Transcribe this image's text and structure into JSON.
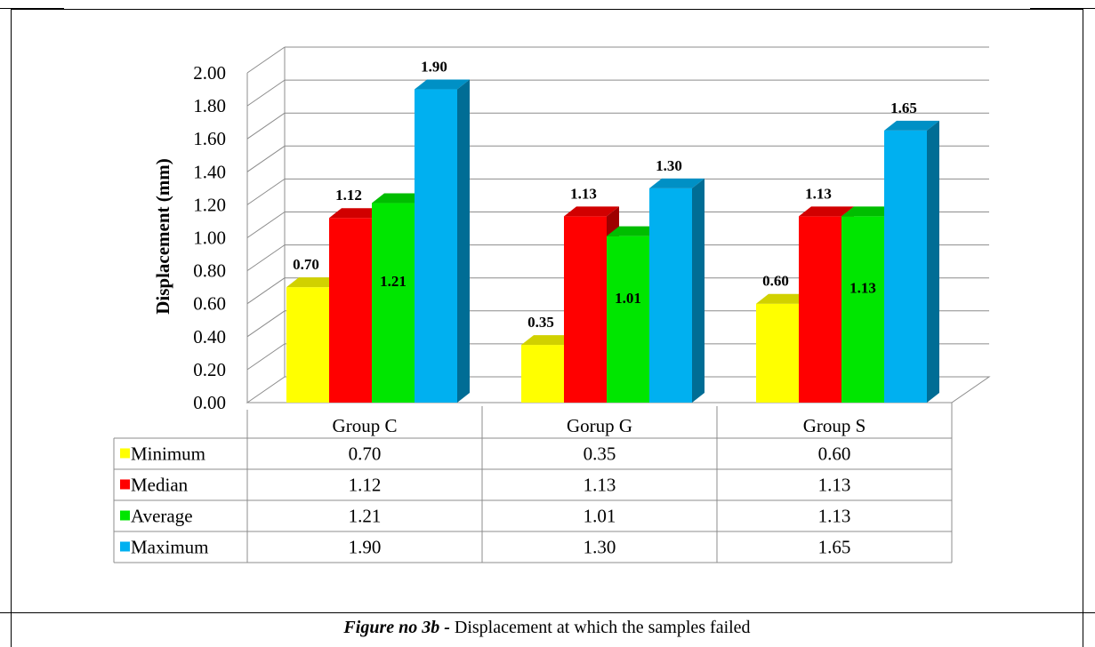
{
  "caption": {
    "label": "Figure no 3b -",
    "text": " Displacement at which the samples failed"
  },
  "chart_data": {
    "type": "bar",
    "style": "3d-clustered-column with data table",
    "ylabel": "Displacement (mm)",
    "xlabel": "",
    "ylim": [
      0,
      2.0
    ],
    "ytick_step": 0.2,
    "ytick_labels": [
      "0.00",
      "0.20",
      "0.40",
      "0.60",
      "0.80",
      "1.00",
      "1.20",
      "1.40",
      "1.60",
      "1.80",
      "2.00"
    ],
    "grid": true,
    "legend": "data-table-left",
    "categories": [
      "Group C",
      "Gorup G",
      "Group S"
    ],
    "series": [
      {
        "name": "Minimum",
        "color": "#FFFF00",
        "values": [
          0.7,
          0.35,
          0.6
        ],
        "labels": [
          "0.70",
          "0.35",
          "0.60"
        ]
      },
      {
        "name": "Median",
        "color": "#FF0000",
        "values": [
          1.12,
          1.13,
          1.13
        ],
        "labels": [
          "1.12",
          "1.13",
          "1.13"
        ]
      },
      {
        "name": "Average",
        "color": "#00E600",
        "values": [
          1.21,
          1.01,
          1.13
        ],
        "labels": [
          "1.21",
          "1.01",
          "1.13"
        ]
      },
      {
        "name": "Maximum",
        "color": "#00B0F0",
        "values": [
          1.9,
          1.3,
          1.65
        ],
        "labels": [
          "1.90",
          "1.30",
          "1.65"
        ]
      }
    ]
  }
}
